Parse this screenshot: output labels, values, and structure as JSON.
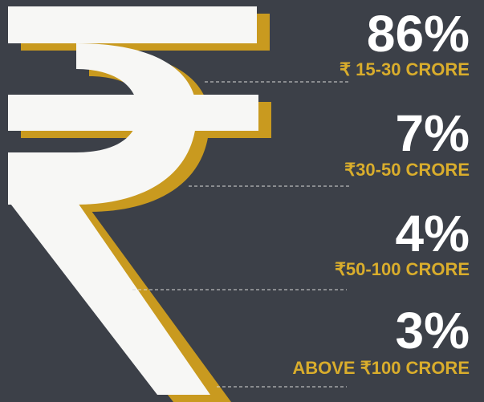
{
  "items": [
    {
      "value": "86%",
      "label": "₹ 15-30 CRORE"
    },
    {
      "value": "7%",
      "label": "₹30-50 CRORE"
    },
    {
      "value": "4%",
      "label": "₹50-100 CRORE"
    },
    {
      "value": "3%",
      "label": "ABOVE ₹100 CRORE"
    }
  ]
}
